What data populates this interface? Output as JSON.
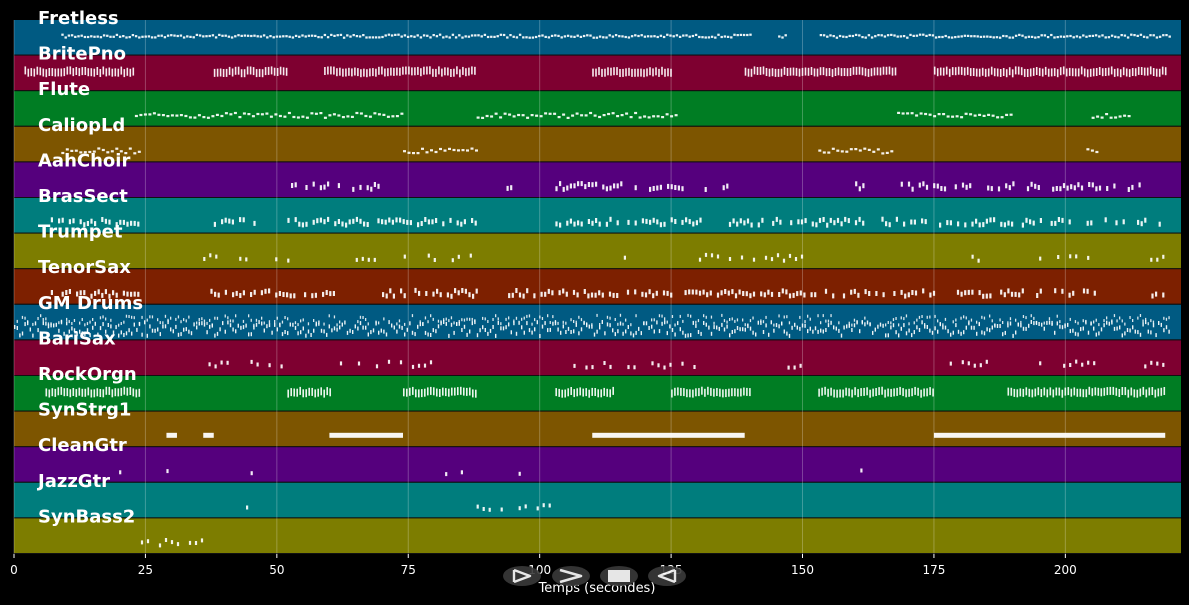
{
  "player": {
    "controls": [
      {
        "name": "play-button",
        "icon": "play-icon"
      },
      {
        "name": "forward-button",
        "icon": "forward-icon"
      },
      {
        "name": "stop-button",
        "icon": "stop-icon"
      },
      {
        "name": "rewind-button",
        "icon": "rewind-icon"
      }
    ]
  },
  "chart_data": {
    "type": "piano-roll",
    "xlabel": "Temps (secondes)",
    "xlim": [
      0,
      222
    ],
    "xticks": [
      0,
      25,
      50,
      75,
      100,
      125,
      150,
      175,
      200
    ],
    "grid": true,
    "background": "#000000",
    "tracks": [
      {
        "name": "Fretless",
        "color": "#005a82",
        "style": "dense",
        "segments": [
          [
            9,
            220
          ]
        ],
        "gaps": [
          [
            140,
            145
          ],
          [
            147,
            153
          ]
        ]
      },
      {
        "name": "BritePno",
        "color": "#7e0030",
        "style": "blocks",
        "segments": [
          [
            2,
            23
          ],
          [
            38,
            52
          ],
          [
            59,
            88
          ],
          [
            110,
            125
          ],
          [
            139,
            168
          ],
          [
            175,
            219
          ]
        ]
      },
      {
        "name": "Flute",
        "color": "#007d23",
        "style": "sparse-line",
        "segments": [
          [
            23,
            74
          ],
          [
            88,
            126
          ],
          [
            168,
            190
          ],
          [
            205,
            212
          ]
        ]
      },
      {
        "name": "CaliopLd",
        "color": "#7d5500",
        "style": "sparse-line",
        "segments": [
          [
            9,
            24
          ],
          [
            74,
            88
          ],
          [
            153,
            167
          ],
          [
            204,
            206
          ]
        ]
      },
      {
        "name": "AahChoir",
        "color": "#55007d",
        "style": "clusters",
        "segments": [
          [
            52,
            70
          ],
          [
            93,
            95
          ],
          [
            103,
            127
          ],
          [
            130,
            136
          ],
          [
            160,
            162
          ],
          [
            168,
            190
          ],
          [
            192,
            214
          ]
        ]
      },
      {
        "name": "BrasSect",
        "color": "#007d7d",
        "style": "clusters",
        "segments": [
          [
            7,
            24
          ],
          [
            38,
            46
          ],
          [
            52,
            88
          ],
          [
            103,
            131
          ],
          [
            136,
            162
          ],
          [
            165,
            219
          ]
        ]
      },
      {
        "name": "Trumpet",
        "color": "#7d7d00",
        "style": "sparse",
        "segments": [
          [
            36,
            52
          ],
          [
            65,
            88
          ],
          [
            116,
            118
          ],
          [
            128,
            150
          ],
          [
            181,
            184
          ],
          [
            195,
            206
          ],
          [
            215,
            219
          ]
        ]
      },
      {
        "name": "TenorSax",
        "color": "#7d2000",
        "style": "clusters",
        "segments": [
          [
            7,
            24
          ],
          [
            36,
            62
          ],
          [
            70,
            88
          ],
          [
            94,
            175
          ],
          [
            178,
            206
          ],
          [
            215,
            219
          ]
        ]
      },
      {
        "name": "GM Drums",
        "color": "#005a82",
        "style": "drums",
        "segments": [
          [
            0,
            220
          ]
        ]
      },
      {
        "name": "BariSax",
        "color": "#7e0030",
        "style": "sparse",
        "segments": [
          [
            37,
            52
          ],
          [
            62,
            80
          ],
          [
            103,
            130
          ],
          [
            146,
            150
          ],
          [
            178,
            185
          ],
          [
            195,
            206
          ],
          [
            215,
            219
          ]
        ]
      },
      {
        "name": "RockOrgn",
        "color": "#007d23",
        "style": "blocks",
        "segments": [
          [
            6,
            24
          ],
          [
            52,
            60
          ],
          [
            74,
            88
          ],
          [
            103,
            114
          ],
          [
            125,
            140
          ],
          [
            153,
            175
          ],
          [
            189,
            219
          ]
        ]
      },
      {
        "name": "SynStrg1",
        "color": "#7d5500",
        "style": "long-notes",
        "segments": [
          [
            29,
            31
          ],
          [
            36,
            38
          ],
          [
            60,
            74
          ],
          [
            110,
            139
          ],
          [
            175,
            219
          ]
        ]
      },
      {
        "name": "CleanGtr",
        "color": "#55007d",
        "style": "sparse",
        "segments": [
          [
            20,
            21
          ],
          [
            29,
            31
          ],
          [
            36,
            37
          ],
          [
            45,
            46
          ],
          [
            82,
            83
          ],
          [
            85,
            86
          ],
          [
            89,
            90
          ],
          [
            92,
            93
          ],
          [
            96,
            97
          ],
          [
            100,
            101
          ],
          [
            161,
            162
          ],
          [
            165,
            166
          ]
        ]
      },
      {
        "name": "JazzGtr",
        "color": "#007d7d",
        "style": "sparse",
        "segments": [
          [
            43,
            45
          ],
          [
            88,
            102
          ]
        ]
      },
      {
        "name": "SynBass2",
        "color": "#7d7d00",
        "style": "sparse",
        "segments": [
          [
            23,
            36
          ]
        ]
      }
    ]
  }
}
